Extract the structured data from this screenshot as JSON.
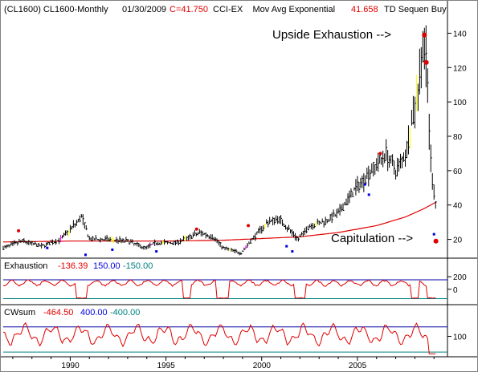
{
  "header": {
    "symbol": "(CL1600) CL1600-Monthly",
    "date": "01/30/2009",
    "close": "C=41.750",
    "indicators": "CCI-EX    Mov Avg Exponential",
    "ma_value": "41.658",
    "td_label": "TD Sequen Buy"
  },
  "annotations": {
    "upside_exhaustion": "Upside Exhaustion -->",
    "capitulation": "Capitulation -->"
  },
  "colors": {
    "background": "#ffffff",
    "bars": "#000000",
    "moving_average": "#e00000",
    "marker_red": "#e00000",
    "marker_blue": "#0000e0",
    "highlight_yellow": "#ffff00",
    "highlight_magenta": "#ff00ff",
    "panel_upper_line": "#0000a0",
    "panel_lower_line": "#008080"
  },
  "chart_data": [
    {
      "type": "ohlc",
      "ylim": [
        10,
        150
      ],
      "y_ticks": [
        "20",
        "40",
        "60",
        "80",
        "100",
        "120",
        "140"
      ],
      "x_tick_labels": [
        "1990",
        "1995",
        "2000",
        "2005"
      ],
      "series": [
        {
          "name": "Mov Avg Exponential",
          "x": [
            1986.5,
            1990,
            1995,
            1998,
            2000,
            2002,
            2004,
            2006,
            2007.5,
            2008.5,
            2009.1
          ],
          "y": [
            18.5,
            19,
            19,
            19.5,
            20.5,
            21.5,
            24,
            28,
            33,
            38,
            41.7
          ]
        }
      ],
      "price_path": {
        "x": [
          1986.5,
          1987.5,
          1988.5,
          1989.5,
          1990.6,
          1991.0,
          1992.0,
          1993.0,
          1993.9,
          1994.5,
          1995.5,
          1996.8,
          1997.5,
          1998.0,
          1998.9,
          1999.5,
          2000.3,
          2000.9,
          2001.9,
          2002.5,
          2003.2,
          2004.0,
          2004.8,
          2005.7,
          2006.5,
          2007.0,
          2007.5,
          2007.9,
          2008.3,
          2008.45,
          2008.65,
          2008.8,
          2008.95,
          2009.1
        ],
        "y": [
          15,
          19,
          16,
          20,
          33,
          20,
          20,
          19,
          15,
          18,
          18,
          24,
          21,
          15,
          12,
          20,
          30,
          32,
          20,
          28,
          30,
          35,
          48,
          60,
          70,
          60,
          70,
          90,
          120,
          135,
          115,
          70,
          50,
          41
        ]
      },
      "td_markers": {
        "red_x": [
          1987.3,
          1996.6,
          1999.3,
          2006.2,
          2008.5,
          2008.6,
          2009.1
        ],
        "red_y": [
          25,
          26,
          28,
          70,
          139,
          123,
          19
        ],
        "blue_x": [
          1988.8,
          1990.8,
          1992.2,
          1994.5,
          2001.3,
          2001.6,
          2005.4,
          2005.6,
          2009.0
        ],
        "blue_y": [
          15,
          11,
          14,
          13,
          16,
          13,
          52,
          46,
          23
        ]
      }
    },
    {
      "type": "line",
      "title": "Exhaustion",
      "values_text": {
        "current": "-136.39",
        "upper": "150.00",
        "lower": "-150.00"
      },
      "ylim": [
        -220,
        240
      ],
      "y_ticks": [
        "200",
        "0"
      ],
      "reference_lines": [
        150,
        -150
      ]
    },
    {
      "type": "line",
      "title": "CWsum",
      "values_text": {
        "current": "-464.50",
        "upper": "400.00",
        "lower": "-400.00"
      },
      "ylim": [
        -500,
        650
      ],
      "y_ticks": [
        "100"
      ],
      "reference_lines": [
        400,
        -400
      ]
    }
  ]
}
